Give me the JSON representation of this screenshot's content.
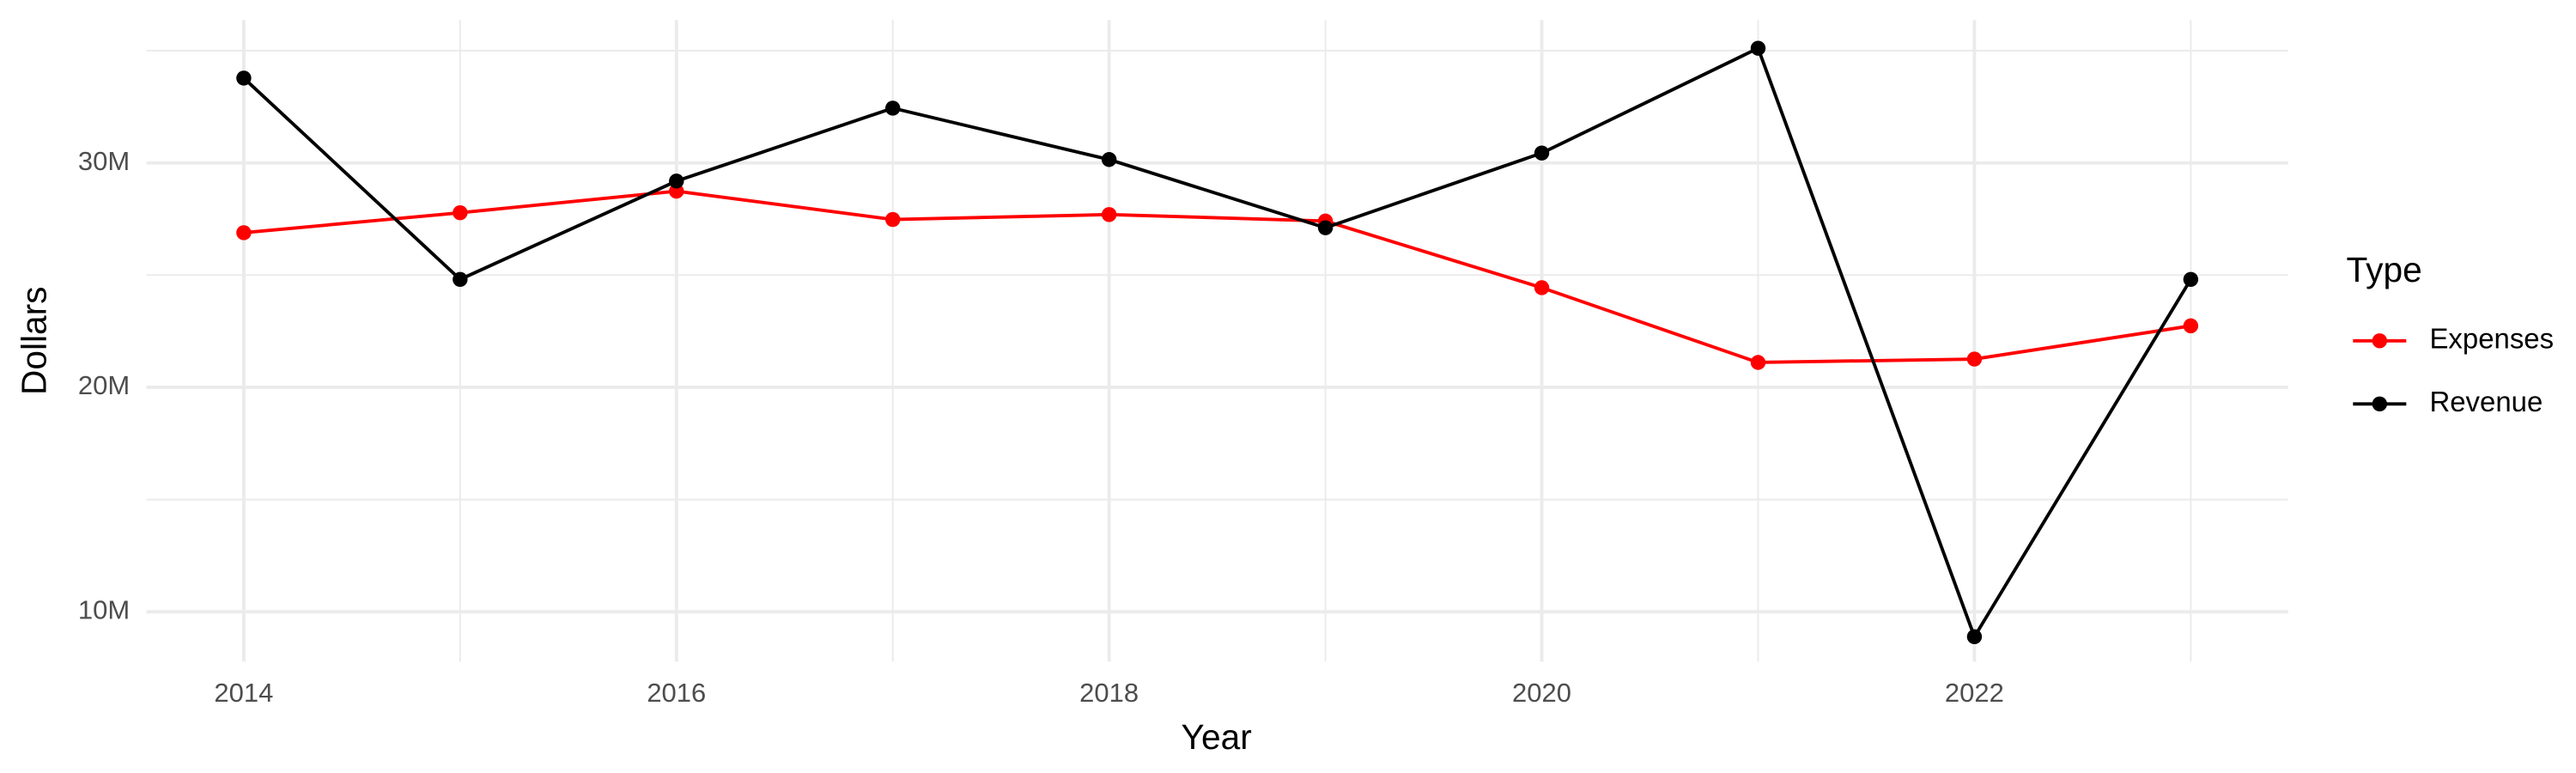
{
  "chart_data": {
    "type": "line",
    "x_label": "Year",
    "y_label": "Dollars",
    "legend_title": "Type",
    "legend_position": "right",
    "x": [
      2014,
      2015,
      2016,
      2017,
      2018,
      2019,
      2020,
      2021,
      2022,
      2023
    ],
    "series": [
      {
        "name": "Expenses",
        "color": "#ff0000",
        "values": [
          26890000,
          27780000,
          28740000,
          27480000,
          27700000,
          27410000,
          24440000,
          21110000,
          21260000,
          22740000
        ]
      },
      {
        "name": "Revenue",
        "color": "#000000",
        "values": [
          33780000,
          24810000,
          29190000,
          32440000,
          30150000,
          27110000,
          30440000,
          35110000,
          8890000,
          24810000
        ]
      }
    ],
    "xlim": [
      2013.55,
      2023.45
    ],
    "xticks": [
      2014,
      2016,
      2018,
      2020,
      2022
    ],
    "ylim": [
      7780000,
      36370000
    ],
    "yticks": [
      {
        "value": 10000000,
        "label": "10M"
      },
      {
        "value": 20000000,
        "label": "20M"
      },
      {
        "value": 30000000,
        "label": "30M"
      }
    ],
    "grid": true
  }
}
